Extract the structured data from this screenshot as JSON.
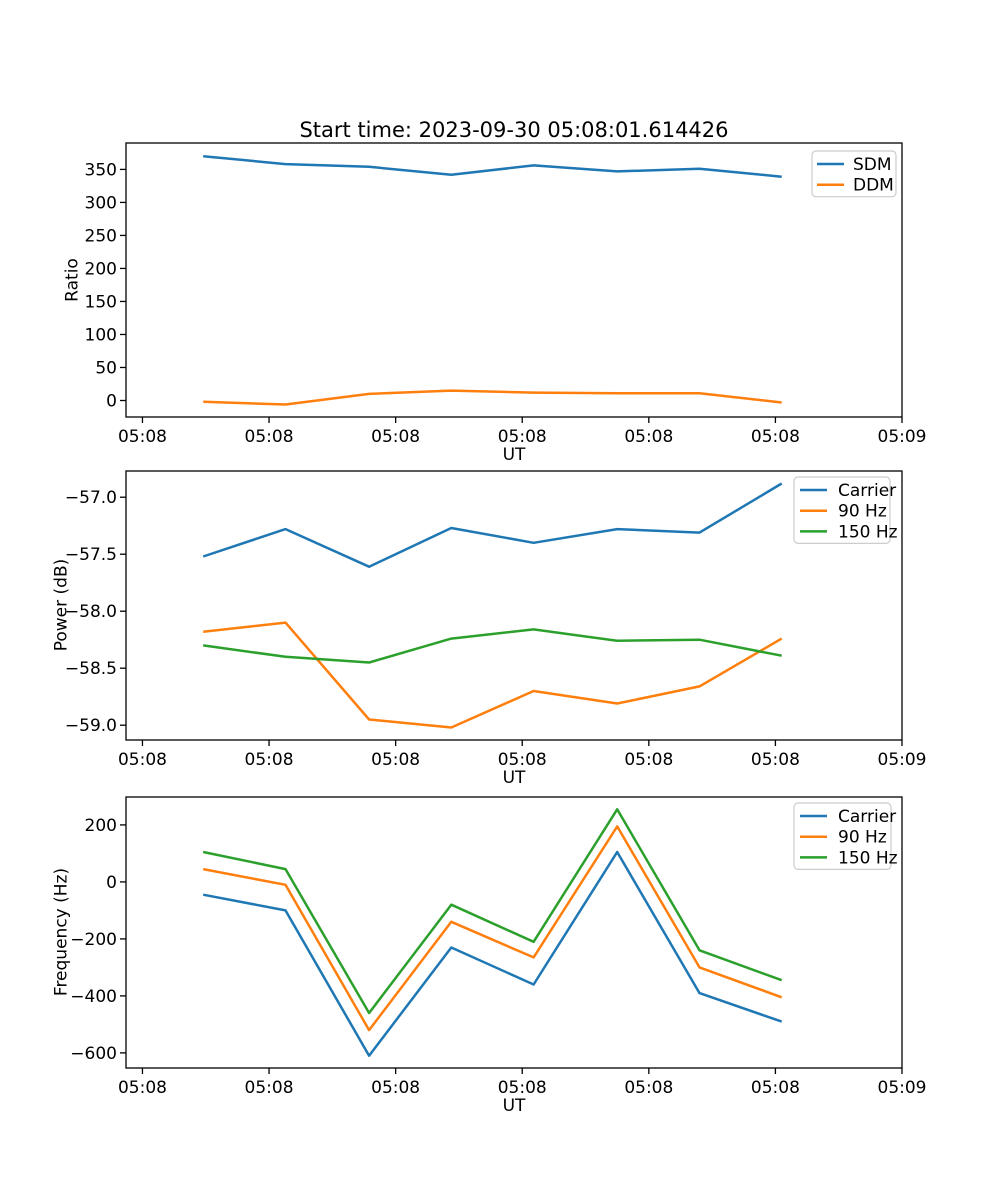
{
  "figure": {
    "title": "Start time: 2023-09-30 05:08:01.614426",
    "background_color": "#ffffff",
    "spine_color": "#000000",
    "legend_border_color": "#cccccc"
  },
  "palette": {
    "blue": "#1f77b4",
    "orange": "#ff7f0e",
    "green": "#2ca02c"
  },
  "chart_data": [
    {
      "type": "line",
      "title": "Start time: 2023-09-30 05:08:01.614426",
      "xlabel": "UT",
      "ylabel": "Ratio",
      "grid": false,
      "legend_position": "upper right",
      "x": [
        4.8,
        11.3,
        17.9,
        24.4,
        30.9,
        37.5,
        44.0,
        50.5
      ],
      "xlim": [
        -1.3,
        60.0
      ],
      "ylim": [
        -25,
        390
      ],
      "xticks": {
        "values": [
          0,
          10,
          20,
          30,
          40,
          50,
          60
        ],
        "labels": [
          "05:08",
          "05:08",
          "05:08",
          "05:08",
          "05:08",
          "05:08",
          "05:09"
        ]
      },
      "yticks": {
        "values": [
          0,
          50,
          100,
          150,
          200,
          250,
          300,
          350
        ],
        "labels": [
          "0",
          "50",
          "100",
          "150",
          "200",
          "250",
          "300",
          "350"
        ]
      },
      "series": [
        {
          "name": "SDM",
          "color": "#1f77b4",
          "values": [
            370,
            358,
            354,
            342,
            356,
            347,
            351,
            339
          ]
        },
        {
          "name": "DDM",
          "color": "#ff7f0e",
          "values": [
            -2,
            -6,
            10,
            15,
            12,
            11,
            11,
            -3
          ]
        }
      ]
    },
    {
      "type": "line",
      "title": "",
      "xlabel": "UT",
      "ylabel": "Power (dB)",
      "grid": false,
      "legend_position": "upper right",
      "x": [
        4.8,
        11.3,
        17.9,
        24.4,
        30.9,
        37.5,
        44.0,
        50.5
      ],
      "xlim": [
        -1.3,
        60.0
      ],
      "ylim": [
        -59.13,
        -56.77
      ],
      "xticks": {
        "values": [
          0,
          10,
          20,
          30,
          40,
          50,
          60
        ],
        "labels": [
          "05:08",
          "05:08",
          "05:08",
          "05:08",
          "05:08",
          "05:08",
          "05:09"
        ]
      },
      "yticks": {
        "values": [
          -59.0,
          -58.5,
          -58.0,
          -57.5,
          -57.0
        ],
        "labels": [
          "−59.0",
          "−58.5",
          "−58.0",
          "−57.5",
          "−57.0"
        ]
      },
      "series": [
        {
          "name": "Carrier",
          "color": "#1f77b4",
          "values": [
            -57.52,
            -57.28,
            -57.61,
            -57.27,
            -57.4,
            -57.28,
            -57.31,
            -56.88
          ]
        },
        {
          "name": "90 Hz",
          "color": "#ff7f0e",
          "values": [
            -58.18,
            -58.1,
            -58.95,
            -59.02,
            -58.7,
            -58.81,
            -58.66,
            -58.24
          ]
        },
        {
          "name": "150 Hz",
          "color": "#2ca02c",
          "values": [
            -58.3,
            -58.4,
            -58.45,
            -58.24,
            -58.16,
            -58.26,
            -58.25,
            -58.39
          ]
        }
      ]
    },
    {
      "type": "line",
      "title": "",
      "xlabel": "UT",
      "ylabel": "Frequency (Hz)",
      "grid": false,
      "legend_position": "upper right",
      "x": [
        4.8,
        11.3,
        17.9,
        24.4,
        30.9,
        37.5,
        44.0,
        50.5
      ],
      "xlim": [
        -1.3,
        60.0
      ],
      "ylim": [
        -653,
        298
      ],
      "xticks": {
        "values": [
          0,
          10,
          20,
          30,
          40,
          50,
          60
        ],
        "labels": [
          "05:08",
          "05:08",
          "05:08",
          "05:08",
          "05:08",
          "05:08",
          "05:09"
        ]
      },
      "yticks": {
        "values": [
          -600,
          -400,
          -200,
          0,
          200
        ],
        "labels": [
          "−600",
          "−400",
          "−200",
          "0",
          "200"
        ]
      },
      "series": [
        {
          "name": "Carrier",
          "color": "#1f77b4",
          "values": [
            -45,
            -100,
            -610,
            -230,
            -360,
            105,
            -390,
            -490
          ]
        },
        {
          "name": "90 Hz",
          "color": "#ff7f0e",
          "values": [
            45,
            -10,
            -520,
            -140,
            -265,
            195,
            -300,
            -405
          ]
        },
        {
          "name": "150 Hz",
          "color": "#2ca02c",
          "values": [
            105,
            45,
            -460,
            -80,
            -210,
            255,
            -240,
            -345
          ]
        }
      ]
    }
  ]
}
